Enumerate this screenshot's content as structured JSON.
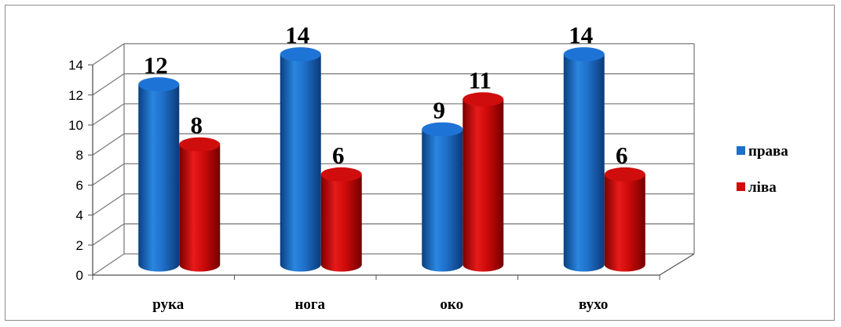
{
  "chart_data": {
    "type": "bar",
    "style": "3d-cylinder",
    "title": "",
    "xlabel": "",
    "ylabel": "",
    "categories": [
      "рука",
      "нога",
      "око",
      "вухо"
    ],
    "series": [
      {
        "name": "права",
        "values": [
          12,
          14,
          9,
          14
        ],
        "color": "#1f6fc8"
      },
      {
        "name": "ліва",
        "values": [
          8,
          6,
          11,
          6
        ],
        "color": "#d10a0a"
      }
    ],
    "ylim": [
      0,
      14
    ],
    "yticks": [
      0,
      2,
      4,
      6,
      8,
      10,
      12,
      14
    ],
    "grid": true,
    "legend": "right",
    "data_labels": true
  }
}
